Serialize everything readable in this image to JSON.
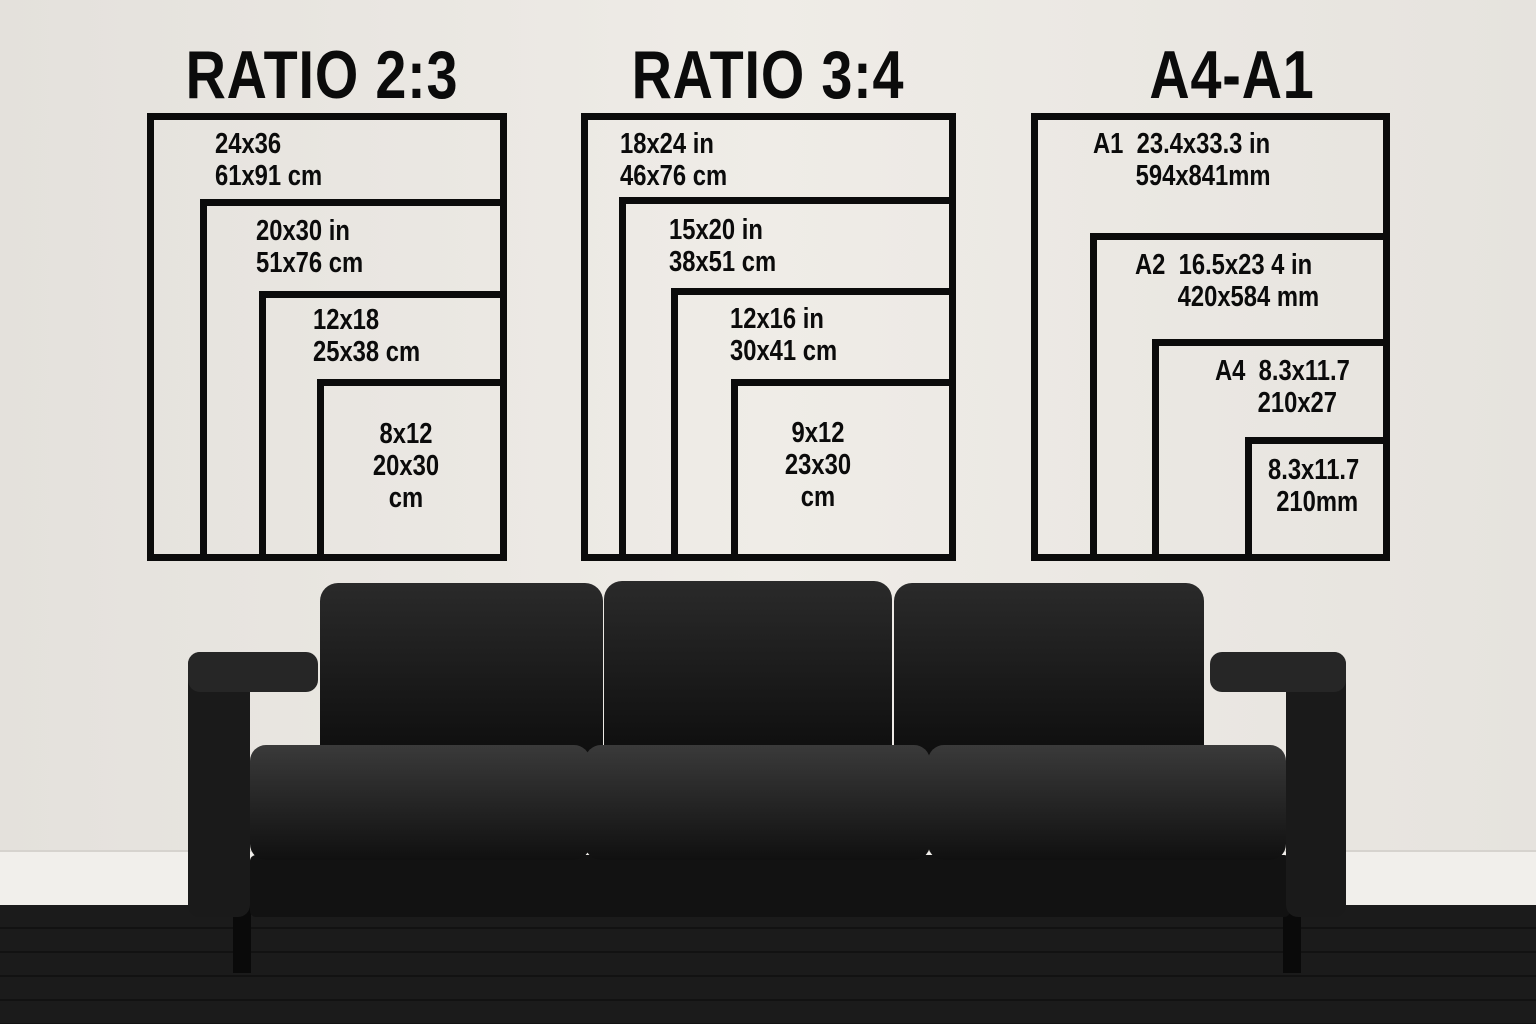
{
  "groups": [
    {
      "title": "RATIO 2:3",
      "sizes": [
        {
          "line1": "24x36",
          "line2": "61x91 cm"
        },
        {
          "line1": "20x30 in",
          "line2": "51x76 cm"
        },
        {
          "line1": "12x18",
          "line2": "25x38 cm"
        },
        {
          "line1": "8x12",
          "line2": "20x30",
          "line3": "cm"
        }
      ]
    },
    {
      "title": "RATIO 3:4",
      "sizes": [
        {
          "line1": "18x24 in",
          "line2": "46x76 cm"
        },
        {
          "line1": "15x20 in",
          "line2": "38x51 cm"
        },
        {
          "line1": "12x16 in",
          "line2": "30x41 cm"
        },
        {
          "line1": "9x12",
          "line2": "23x30",
          "line3": "cm"
        }
      ]
    },
    {
      "title": "A4-A1",
      "sizes": [
        {
          "line1": "A1  23.4x33.3 in",
          "line2": "594x841mm"
        },
        {
          "line1": "A2  16.5x23 4 in",
          "line2": "420x584 mm"
        },
        {
          "line1": "A4  8.3x11.7",
          "line2": "210x27"
        },
        {
          "line1": "8.3x11.7",
          "line2": "210mm"
        }
      ]
    }
  ],
  "colors": {
    "wall": "#ebe8e3",
    "frame": "#0b0b0b",
    "sofa": "#141414",
    "floor": "#1b1b1b"
  }
}
